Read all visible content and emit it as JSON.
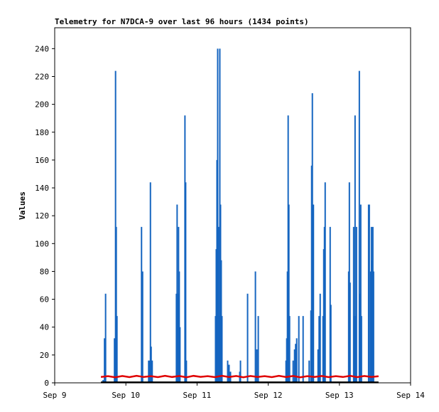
{
  "chart_data": {
    "type": "bar",
    "title": "Telemetry for N7DCA-9 over last 96 hours (1434 points)",
    "xlabel": "",
    "ylabel": "Values",
    "xlim": [
      9,
      14
    ],
    "ylim": [
      0,
      255
    ],
    "x_ticks": [
      {
        "value": 9,
        "label": "Sep 9"
      },
      {
        "value": 10,
        "label": "Sep 10"
      },
      {
        "value": 11,
        "label": "Sep 11"
      },
      {
        "value": 12,
        "label": "Sep 12"
      },
      {
        "value": 13,
        "label": "Sep 13"
      },
      {
        "value": 14,
        "label": "Sep 14"
      }
    ],
    "y_ticks": [
      0,
      20,
      40,
      60,
      80,
      100,
      120,
      140,
      160,
      180,
      200,
      220,
      240
    ],
    "grid": false,
    "legend": "none",
    "series": [
      {
        "color": "#1565c0",
        "style": "impulse",
        "points": [
          {
            "x": 9.68,
            "y": 2
          },
          {
            "x": 9.7,
            "y": 32
          },
          {
            "x": 9.715,
            "y": 64
          },
          {
            "x": 9.84,
            "y": 32
          },
          {
            "x": 9.855,
            "y": 224
          },
          {
            "x": 9.865,
            "y": 112
          },
          {
            "x": 9.875,
            "y": 48
          },
          {
            "x": 10.22,
            "y": 112
          },
          {
            "x": 10.235,
            "y": 80
          },
          {
            "x": 10.32,
            "y": 16
          },
          {
            "x": 10.335,
            "y": 16
          },
          {
            "x": 10.345,
            "y": 144
          },
          {
            "x": 10.355,
            "y": 26
          },
          {
            "x": 10.37,
            "y": 16
          },
          {
            "x": 10.71,
            "y": 64
          },
          {
            "x": 10.72,
            "y": 128
          },
          {
            "x": 10.73,
            "y": 64
          },
          {
            "x": 10.74,
            "y": 112
          },
          {
            "x": 10.75,
            "y": 80
          },
          {
            "x": 10.76,
            "y": 40
          },
          {
            "x": 10.83,
            "y": 192
          },
          {
            "x": 10.84,
            "y": 144
          },
          {
            "x": 10.85,
            "y": 16
          },
          {
            "x": 11.26,
            "y": 48
          },
          {
            "x": 11.27,
            "y": 96
          },
          {
            "x": 11.28,
            "y": 160
          },
          {
            "x": 11.29,
            "y": 240
          },
          {
            "x": 11.3,
            "y": 112
          },
          {
            "x": 11.31,
            "y": 48
          },
          {
            "x": 11.32,
            "y": 240
          },
          {
            "x": 11.33,
            "y": 128
          },
          {
            "x": 11.34,
            "y": 88
          },
          {
            "x": 11.35,
            "y": 48
          },
          {
            "x": 11.43,
            "y": 16
          },
          {
            "x": 11.45,
            "y": 13
          },
          {
            "x": 11.47,
            "y": 8
          },
          {
            "x": 11.6,
            "y": 8
          },
          {
            "x": 11.61,
            "y": 16
          },
          {
            "x": 11.71,
            "y": 64
          },
          {
            "x": 11.82,
            "y": 80
          },
          {
            "x": 11.84,
            "y": 24
          },
          {
            "x": 11.86,
            "y": 48
          },
          {
            "x": 12.25,
            "y": 16
          },
          {
            "x": 12.26,
            "y": 32
          },
          {
            "x": 12.27,
            "y": 80
          },
          {
            "x": 12.28,
            "y": 192
          },
          {
            "x": 12.29,
            "y": 128
          },
          {
            "x": 12.3,
            "y": 48
          },
          {
            "x": 12.35,
            "y": 16
          },
          {
            "x": 12.37,
            "y": 24
          },
          {
            "x": 12.385,
            "y": 28
          },
          {
            "x": 12.4,
            "y": 32
          },
          {
            "x": 12.43,
            "y": 48
          },
          {
            "x": 12.49,
            "y": 48
          },
          {
            "x": 12.575,
            "y": 16
          },
          {
            "x": 12.6,
            "y": 52
          },
          {
            "x": 12.61,
            "y": 156
          },
          {
            "x": 12.62,
            "y": 208
          },
          {
            "x": 12.635,
            "y": 128
          },
          {
            "x": 12.7,
            "y": 24
          },
          {
            "x": 12.715,
            "y": 48
          },
          {
            "x": 12.73,
            "y": 64
          },
          {
            "x": 12.77,
            "y": 48
          },
          {
            "x": 12.78,
            "y": 96
          },
          {
            "x": 12.79,
            "y": 112
          },
          {
            "x": 12.8,
            "y": 144
          },
          {
            "x": 12.87,
            "y": 112
          },
          {
            "x": 12.88,
            "y": 56
          },
          {
            "x": 13.13,
            "y": 80
          },
          {
            "x": 13.14,
            "y": 144
          },
          {
            "x": 13.15,
            "y": 72
          },
          {
            "x": 13.2,
            "y": 112
          },
          {
            "x": 13.21,
            "y": 48
          },
          {
            "x": 13.22,
            "y": 192
          },
          {
            "x": 13.23,
            "y": 48
          },
          {
            "x": 13.24,
            "y": 112
          },
          {
            "x": 13.28,
            "y": 224
          },
          {
            "x": 13.29,
            "y": 64
          },
          {
            "x": 13.3,
            "y": 128
          },
          {
            "x": 13.31,
            "y": 48
          },
          {
            "x": 13.41,
            "y": 128
          },
          {
            "x": 13.42,
            "y": 128
          },
          {
            "x": 13.44,
            "y": 80
          },
          {
            "x": 13.45,
            "y": 112
          },
          {
            "x": 13.46,
            "y": 88
          },
          {
            "x": 13.47,
            "y": 112
          },
          {
            "x": 13.48,
            "y": 80
          }
        ]
      },
      {
        "color": "#e00000",
        "style": "line",
        "points": [
          {
            "x": 9.65,
            "y": 4.2
          },
          {
            "x": 9.75,
            "y": 4.8
          },
          {
            "x": 9.85,
            "y": 4.0
          },
          {
            "x": 9.95,
            "y": 4.9
          },
          {
            "x": 10.05,
            "y": 4.1
          },
          {
            "x": 10.15,
            "y": 5.0
          },
          {
            "x": 10.25,
            "y": 4.2
          },
          {
            "x": 10.35,
            "y": 4.8
          },
          {
            "x": 10.45,
            "y": 4.1
          },
          {
            "x": 10.55,
            "y": 5.0
          },
          {
            "x": 10.65,
            "y": 4.2
          },
          {
            "x": 10.75,
            "y": 4.9
          },
          {
            "x": 10.85,
            "y": 4.0
          },
          {
            "x": 10.95,
            "y": 5.0
          },
          {
            "x": 11.05,
            "y": 4.3
          },
          {
            "x": 11.15,
            "y": 4.8
          },
          {
            "x": 11.25,
            "y": 4.1
          },
          {
            "x": 11.35,
            "y": 5.0
          },
          {
            "x": 11.45,
            "y": 4.2
          },
          {
            "x": 11.55,
            "y": 4.9
          },
          {
            "x": 11.65,
            "y": 4.0
          },
          {
            "x": 11.75,
            "y": 4.9
          },
          {
            "x": 11.85,
            "y": 4.2
          },
          {
            "x": 11.95,
            "y": 4.8
          },
          {
            "x": 12.05,
            "y": 4.1
          },
          {
            "x": 12.15,
            "y": 5.0
          },
          {
            "x": 12.25,
            "y": 4.2
          },
          {
            "x": 12.35,
            "y": 4.9
          },
          {
            "x": 12.45,
            "y": 4.0
          },
          {
            "x": 12.55,
            "y": 4.8
          },
          {
            "x": 12.65,
            "y": 4.2
          },
          {
            "x": 12.75,
            "y": 4.9
          },
          {
            "x": 12.85,
            "y": 4.1
          },
          {
            "x": 12.95,
            "y": 4.8
          },
          {
            "x": 13.05,
            "y": 4.2
          },
          {
            "x": 13.15,
            "y": 5.0
          },
          {
            "x": 13.25,
            "y": 4.1
          },
          {
            "x": 13.35,
            "y": 4.9
          },
          {
            "x": 13.45,
            "y": 4.2
          },
          {
            "x": 13.55,
            "y": 4.7
          }
        ]
      },
      {
        "color": "#000000",
        "style": "line",
        "points": [
          {
            "x": 9.65,
            "y": 0.3
          },
          {
            "x": 13.55,
            "y": 0.3
          }
        ]
      }
    ]
  }
}
